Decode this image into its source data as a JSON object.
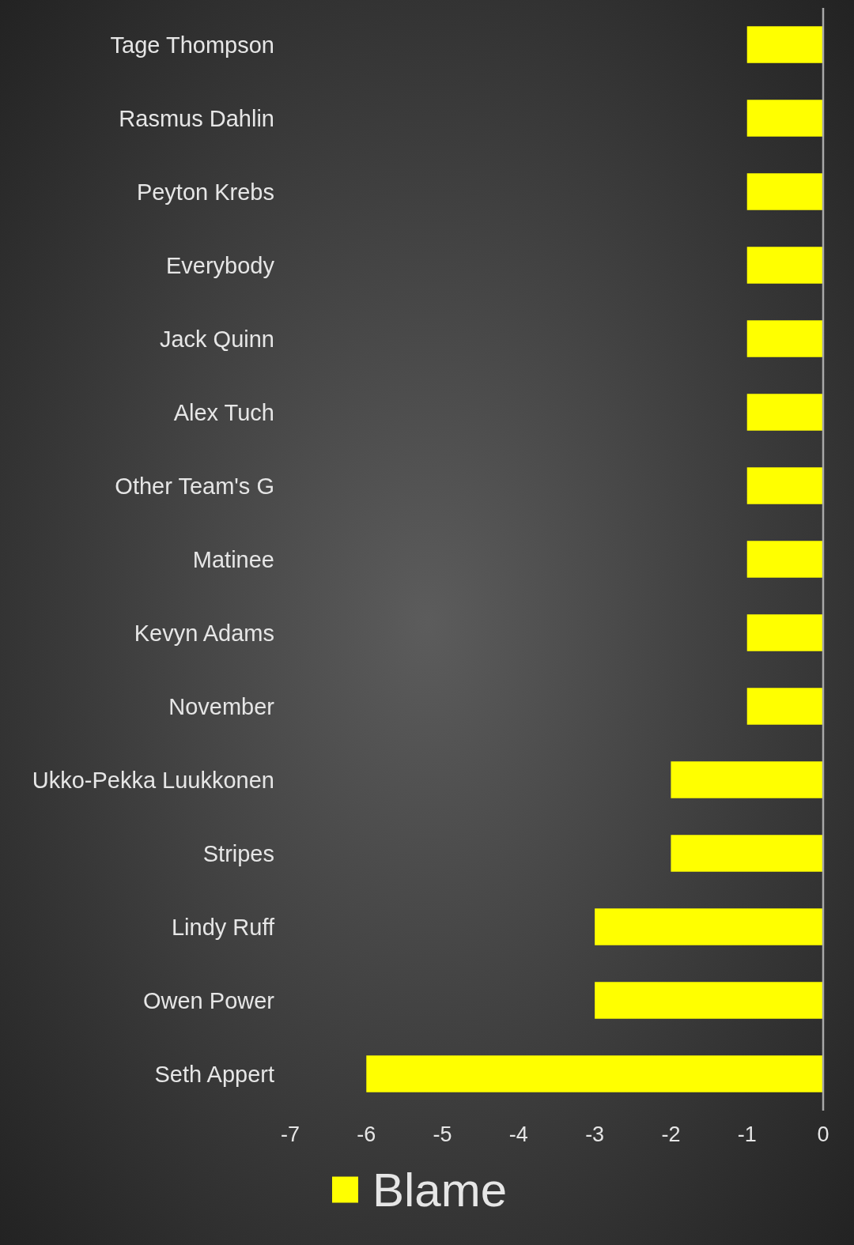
{
  "chart_data": {
    "type": "bar",
    "orientation": "horizontal",
    "categories": [
      "Tage Thompson",
      "Rasmus Dahlin",
      "Peyton Krebs",
      "Everybody",
      "Jack Quinn",
      "Alex Tuch",
      "Other Team's G",
      "Matinee",
      "Kevyn Adams",
      "November",
      "Ukko-Pekka Luukkonen",
      "Stripes",
      "Lindy Ruff",
      "Owen Power",
      "Seth Appert"
    ],
    "series": [
      {
        "name": "Blame",
        "color": "#ffff00",
        "values": [
          -1,
          -1,
          -1,
          -1,
          -1,
          -1,
          -1,
          -1,
          -1,
          -1,
          -2,
          -2,
          -3,
          -3,
          -6
        ]
      }
    ],
    "xlim": [
      -7,
      0
    ],
    "xticks": [
      -7,
      -6,
      -5,
      -4,
      -3,
      -2,
      -1,
      0
    ],
    "legend": "bottom"
  }
}
